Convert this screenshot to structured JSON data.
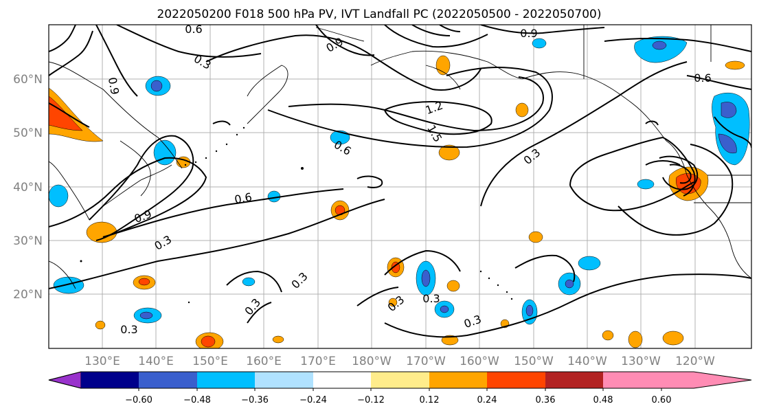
{
  "title": "2022050200 F018 500 hPa PV, IVT Landfall PC (2022050500 - 2022050700)",
  "map": {
    "lat_labels": [
      "60°N",
      "50°N",
      "40°N",
      "30°N",
      "20°N"
    ],
    "lon_labels": [
      "130°E",
      "140°E",
      "150°E",
      "160°E",
      "170°E",
      "180°W",
      "170°W",
      "160°W",
      "150°W",
      "140°W",
      "130°W",
      "120°W"
    ],
    "contour_labels": [
      "0.6",
      "0.3",
      "0.9",
      "0.9",
      "1.2",
      "1.5",
      "0.6",
      "0.3",
      "0.9",
      "0.3",
      "0.6",
      "0.3",
      "0.3",
      "0.3",
      "0.3",
      "0.3",
      "0.3",
      "0.6",
      "0.9"
    ]
  },
  "colorbar": {
    "ticks": [
      "−0.60",
      "−0.48",
      "−0.36",
      "−0.24",
      "−0.12",
      "0.12",
      "0.24",
      "0.36",
      "0.48",
      "0.60"
    ],
    "colors": [
      "#9932cc",
      "#00008b",
      "#3a5fcd",
      "#00bfff",
      "#b0e2ff",
      "#ffffff",
      "#ffec8b",
      "#ffa500",
      "#ff4500",
      "#b22222",
      "#ff8cb4"
    ]
  }
}
